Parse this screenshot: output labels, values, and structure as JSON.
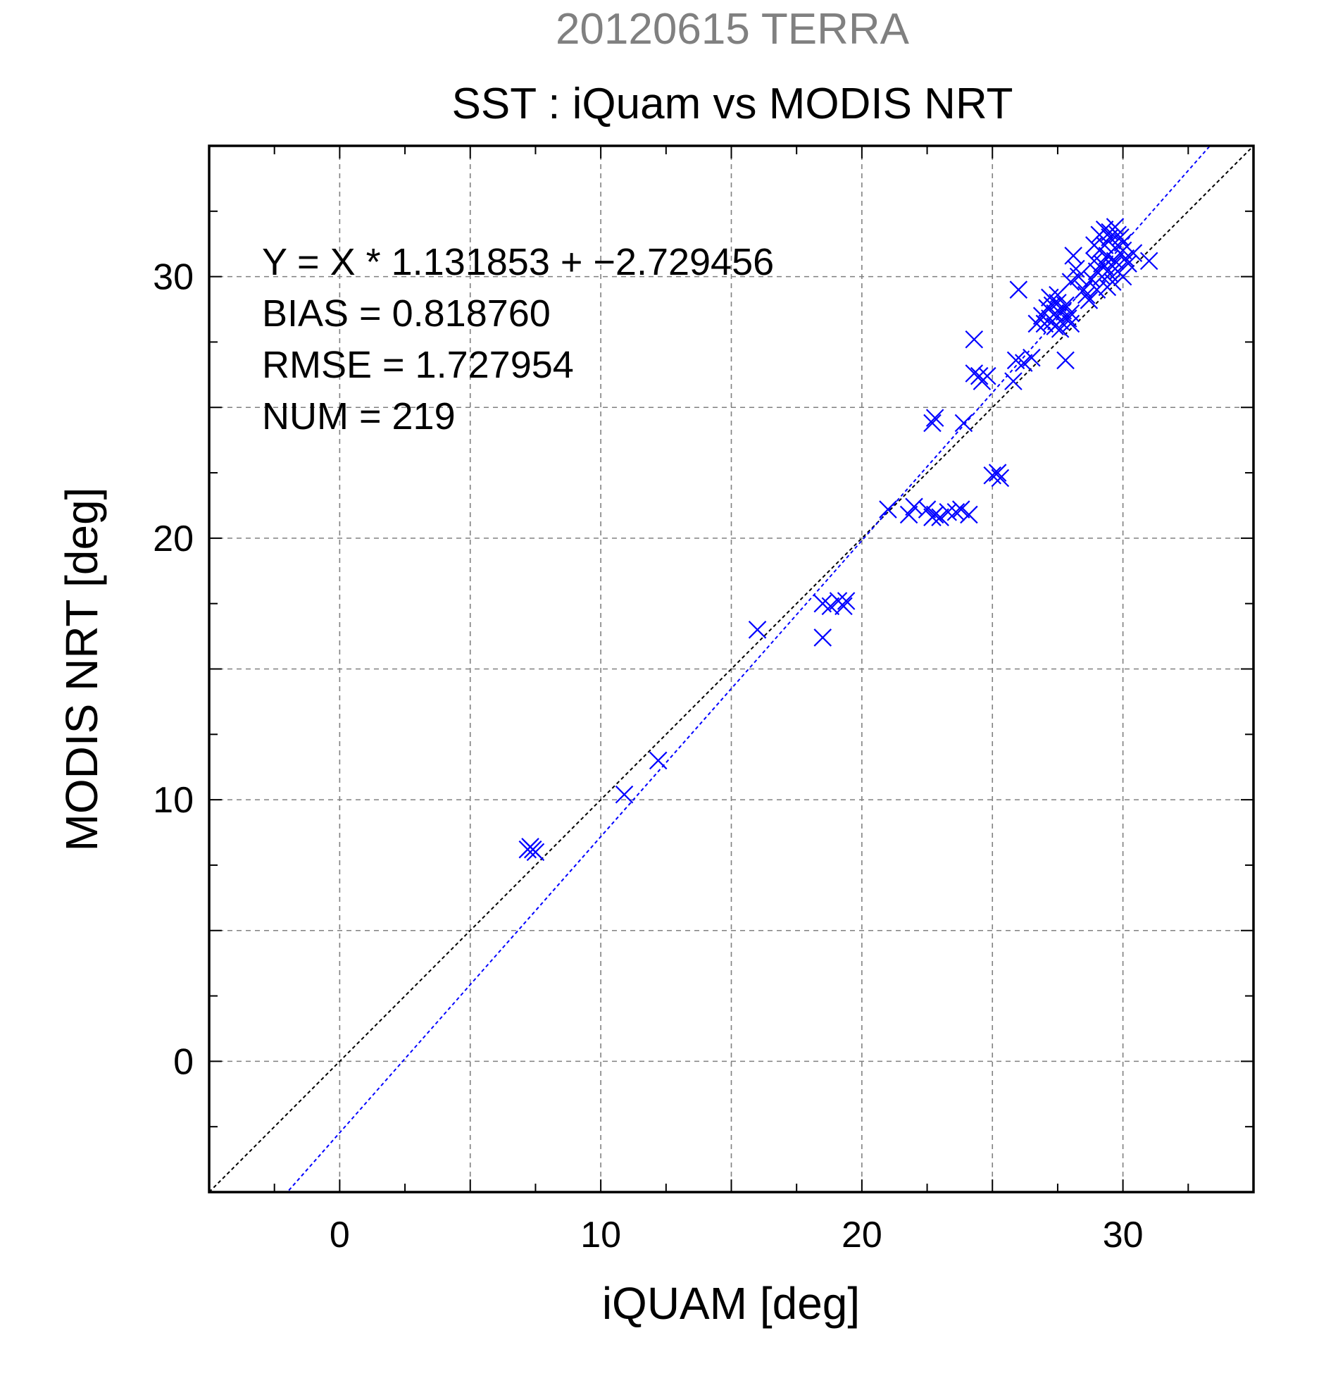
{
  "chart_data": {
    "type": "scatter",
    "subtitle": "20120615 TERRA",
    "title": "SST : iQuam vs MODIS NRT",
    "xlabel": "iQUAM [deg]",
    "ylabel": "MODIS NRT [deg]",
    "xlim": [
      -5,
      35
    ],
    "ylim": [
      -5,
      35
    ],
    "x_ticks": [
      0,
      10,
      20,
      30
    ],
    "y_ticks": [
      0,
      10,
      20,
      30
    ],
    "grid": true,
    "stats": [
      "Y = X * 1.131853 + −2.729456",
      "BIAS = 0.818760",
      "RMSE = 1.727954",
      "NUM = 219"
    ],
    "regression": {
      "slope": 1.131853,
      "intercept": -2.729456
    },
    "colors": {
      "points": "#0000ff",
      "fit": "#0000ff",
      "identity": "#000000",
      "subtitle": "#808080",
      "grid": "#808080"
    },
    "series": [
      {
        "marker": "x",
        "points": [
          [
            7.2,
            8.1
          ],
          [
            7.3,
            8.2
          ],
          [
            7.4,
            8.1
          ],
          [
            7.5,
            8.0
          ],
          [
            10.9,
            10.2
          ],
          [
            12.2,
            11.5
          ],
          [
            16.0,
            16.5
          ],
          [
            18.5,
            16.2
          ],
          [
            18.5,
            17.5
          ],
          [
            18.8,
            17.4
          ],
          [
            19.1,
            17.6
          ],
          [
            19.3,
            17.4
          ],
          [
            19.4,
            17.6
          ],
          [
            21.0,
            21.1
          ],
          [
            21.8,
            20.9
          ],
          [
            22.0,
            21.2
          ],
          [
            22.5,
            21.1
          ],
          [
            22.7,
            20.8
          ],
          [
            22.8,
            20.9
          ],
          [
            23.0,
            20.8
          ],
          [
            23.3,
            21.0
          ],
          [
            23.6,
            21.0
          ],
          [
            23.8,
            21.1
          ],
          [
            24.1,
            20.9
          ],
          [
            22.7,
            24.4
          ],
          [
            22.8,
            24.6
          ],
          [
            23.9,
            24.4
          ],
          [
            24.3,
            27.6
          ],
          [
            24.3,
            26.3
          ],
          [
            24.5,
            26.2
          ],
          [
            24.6,
            26.0
          ],
          [
            24.8,
            26.2
          ],
          [
            25.0,
            22.4
          ],
          [
            25.2,
            22.5
          ],
          [
            25.3,
            22.3
          ],
          [
            25.8,
            26.0
          ],
          [
            25.9,
            26.8
          ],
          [
            26.2,
            26.7
          ],
          [
            26.5,
            26.9
          ],
          [
            26.0,
            29.5
          ],
          [
            26.7,
            28.2
          ],
          [
            26.9,
            28.5
          ],
          [
            27.0,
            28.2
          ],
          [
            27.1,
            28.8
          ],
          [
            27.2,
            28.4
          ],
          [
            27.3,
            28.9
          ],
          [
            27.4,
            28.6
          ],
          [
            27.4,
            28.1
          ],
          [
            27.5,
            29.0
          ],
          [
            27.6,
            28.3
          ],
          [
            27.7,
            28.7
          ],
          [
            27.8,
            28.9
          ],
          [
            27.2,
            29.2
          ],
          [
            27.5,
            29.3
          ],
          [
            27.9,
            28.4
          ],
          [
            28.0,
            28.6
          ],
          [
            27.6,
            28.0
          ],
          [
            27.8,
            26.8
          ],
          [
            28.0,
            28.2
          ],
          [
            27.3,
            28.3
          ],
          [
            28.0,
            29.8
          ],
          [
            28.3,
            30.0
          ],
          [
            28.5,
            29.5
          ],
          [
            28.2,
            30.3
          ],
          [
            28.1,
            30.8
          ],
          [
            28.6,
            29.3
          ],
          [
            28.8,
            29.9
          ],
          [
            28.9,
            30.6
          ],
          [
            29.0,
            30.2
          ],
          [
            29.1,
            31.0
          ],
          [
            29.2,
            30.5
          ],
          [
            29.3,
            31.2
          ],
          [
            29.4,
            30.8
          ],
          [
            29.5,
            31.5
          ],
          [
            29.6,
            30.4
          ],
          [
            29.7,
            31.1
          ],
          [
            29.8,
            31.6
          ],
          [
            29.9,
            30.9
          ],
          [
            30.0,
            31.3
          ],
          [
            30.1,
            30.7
          ],
          [
            29.3,
            31.8
          ],
          [
            29.5,
            31.7
          ],
          [
            29.7,
            31.9
          ],
          [
            29.9,
            31.5
          ],
          [
            29.6,
            29.8
          ],
          [
            29.4,
            29.6
          ],
          [
            30.2,
            30.5
          ],
          [
            30.4,
            30.9
          ],
          [
            31.0,
            30.6
          ],
          [
            29.0,
            29.5
          ],
          [
            28.7,
            29.1
          ],
          [
            29.2,
            30.0
          ],
          [
            29.8,
            30.2
          ],
          [
            30.0,
            30.0
          ],
          [
            28.9,
            31.2
          ],
          [
            29.1,
            31.6
          ],
          [
            29.5,
            30.1
          ],
          [
            29.3,
            30.4
          ],
          [
            29.7,
            30.6
          ],
          [
            30.0,
            31.0
          ]
        ]
      }
    ]
  }
}
